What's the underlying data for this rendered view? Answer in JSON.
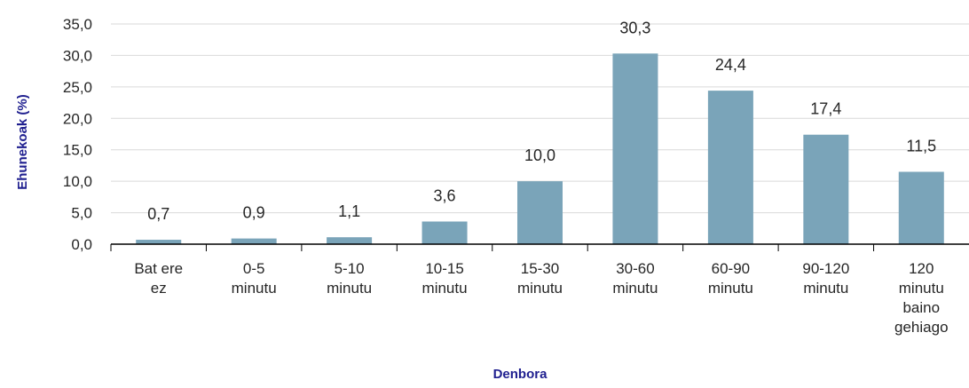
{
  "chart_data": {
    "type": "bar",
    "categories": [
      [
        "Bat ere",
        "ez"
      ],
      [
        "0-5",
        "minutu"
      ],
      [
        "5-10",
        "minutu"
      ],
      [
        "10-15",
        "minutu"
      ],
      [
        "15-30",
        "minutu"
      ],
      [
        "30-60",
        "minutu"
      ],
      [
        "60-90",
        "minutu"
      ],
      [
        "90-120",
        "minutu"
      ],
      [
        "120",
        "minutu",
        "baino",
        "gehiago"
      ]
    ],
    "values": [
      0.7,
      0.9,
      1.1,
      3.6,
      10.0,
      30.3,
      24.4,
      17.4,
      11.5
    ],
    "value_labels": [
      "0,7",
      "0,9",
      "1,1",
      "3,6",
      "10,0",
      "30,3",
      "24,4",
      "17,4",
      "11,5"
    ],
    "y_ticks": [
      0,
      5,
      10,
      15,
      20,
      25,
      30,
      35
    ],
    "y_tick_labels": [
      "0,0",
      "5,0",
      "10,0",
      "15,0",
      "20,0",
      "25,0",
      "30,0",
      "35,0"
    ],
    "ylim": [
      0,
      35
    ],
    "xlabel": "Denbora",
    "ylabel": "Ehunekoak (%)",
    "grid": true,
    "colors": {
      "bar": "#7aa4b9",
      "grid": "#d9d9d9",
      "axis": "#000000",
      "axis_title": "#1f1f8f",
      "text": "#262626"
    }
  }
}
